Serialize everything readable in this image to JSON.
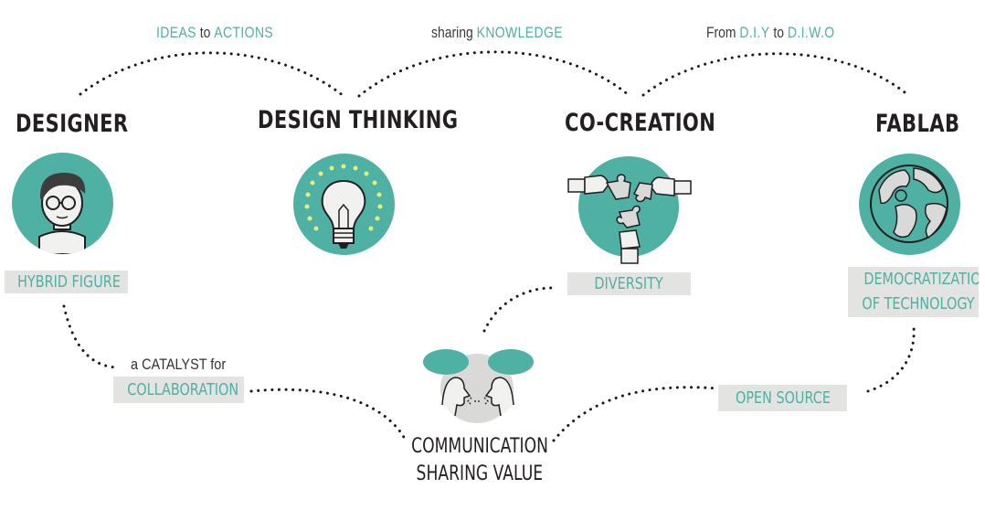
{
  "colors": {
    "teal": "#4fb0a4",
    "tag_bg": "#e3e3e1",
    "text": "#231f20",
    "dot": "#1a1a1a"
  },
  "top_labels": {
    "ideas": {
      "part1": "IDEAS",
      "to": "to",
      "part2": "ACTIONS"
    },
    "sharing": {
      "part1": "sharing",
      "part2": "KNOWLEDGE"
    },
    "diy": {
      "from": "From",
      "part1": "D.I.Y",
      "to": "to",
      "part2": "D.I.W.O"
    }
  },
  "nodes": {
    "designer": {
      "title": "DESIGNER",
      "tag": "HYBRID FIGURE",
      "icon": "designer-avatar-icon"
    },
    "design_thinking": {
      "title": "DESIGN THINKING",
      "icon": "lightbulb-icon"
    },
    "co_creation": {
      "title": "CO-CREATION",
      "tag": "DIVERSITY",
      "icon": "puzzle-hands-icon"
    },
    "fablab": {
      "title": "FABLAB",
      "tag_line1": "DEMOCRATIZATION",
      "tag_line2": "OF TECHNOLOGY",
      "icon": "globe-icon"
    }
  },
  "catalyst": {
    "prefix": "a",
    "word": "CATALYST",
    "suffix": "for",
    "tag": "COLLABORATION"
  },
  "open_source": {
    "tag": "OPEN SOURCE"
  },
  "communication": {
    "line1": "COMMUNICATION",
    "line2": "SHARING VALUE",
    "icon": "conversation-icon"
  }
}
